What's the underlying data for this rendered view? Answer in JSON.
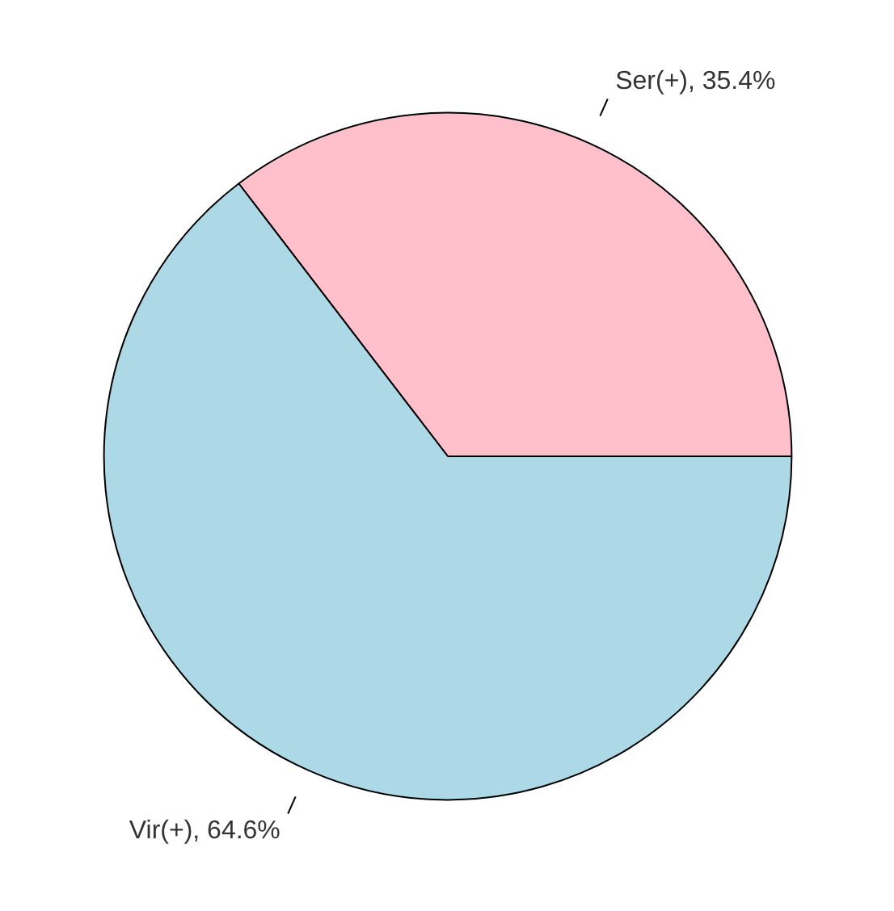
{
  "chart_data": {
    "type": "pie",
    "categories": [
      "Ser(+), 35.4%",
      "Vir(+), 64.6%"
    ],
    "values": [
      35.4,
      64.6
    ],
    "colors": [
      "#ffc0cb",
      "#add8e6"
    ]
  }
}
